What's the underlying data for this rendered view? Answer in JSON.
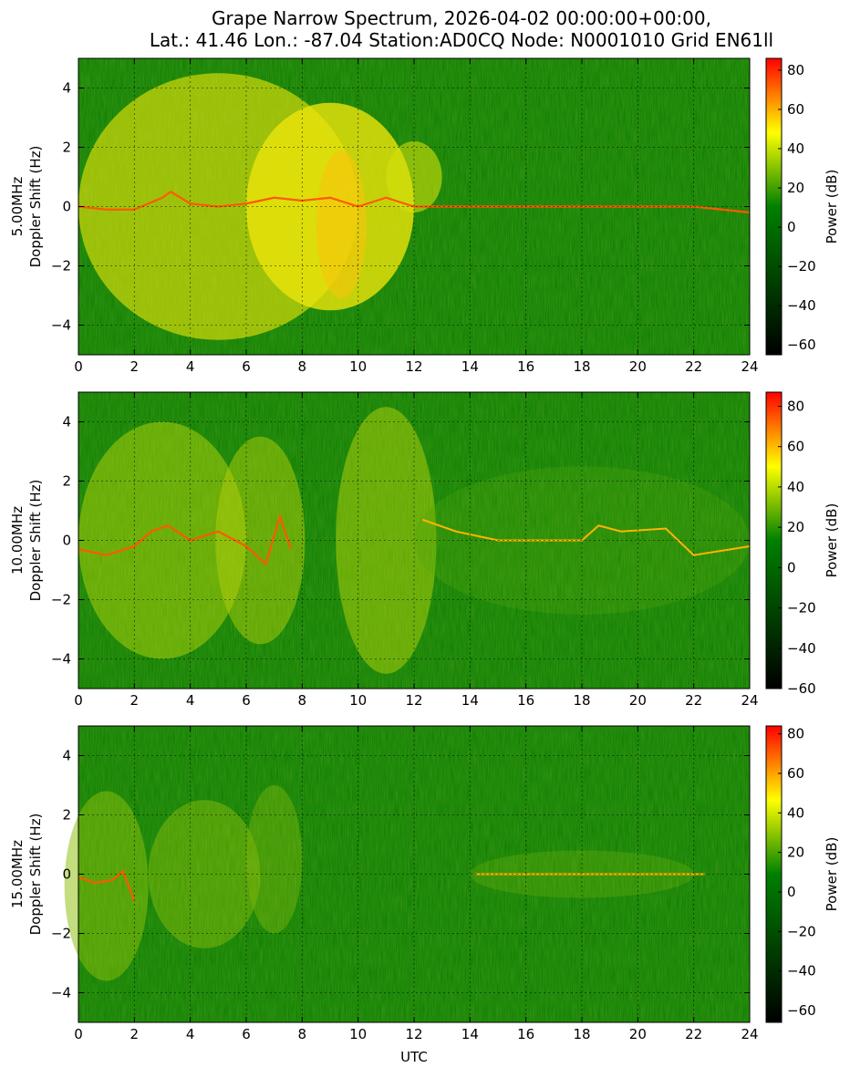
{
  "title_line1": "Grape Narrow Spectrum, 2026-04-02 00:00:00+00:00,",
  "title_line2": "Lat.: 41.46 Lon.: -87.04 Station:AD0CQ Node: N0001010 Grid EN61ll",
  "xlabel": "UTC",
  "colorbar_label": "Power (dB)",
  "colors": {
    "low": "#000000",
    "mid": "#008000",
    "high_mid": "#ffff00",
    "high": "#ff0000"
  },
  "chart_data": [
    {
      "type": "heatmap",
      "band": "5.00MHz",
      "ylabel_line1": "5.00MHz",
      "ylabel_line2": "Doppler Shift (Hz)",
      "xlim": [
        0,
        24
      ],
      "ylim": [
        -5,
        5
      ],
      "xticks": [
        "0",
        "2",
        "4",
        "6",
        "8",
        "10",
        "12",
        "14",
        "16",
        "18",
        "20",
        "22",
        "24"
      ],
      "yticks": [
        "4",
        "2",
        "0",
        "−2",
        "−4"
      ],
      "yvals": [
        4,
        2,
        0,
        -2,
        -4
      ],
      "colorbar_range": [
        -65,
        86
      ],
      "colorbar_ticks": [
        80,
        60,
        40,
        20,
        0,
        -20,
        -40,
        -60
      ],
      "colorbar_tick_labels": [
        "80",
        "60",
        "40",
        "20",
        "0",
        "−20",
        "−40",
        "−60"
      ],
      "grid": true
    },
    {
      "type": "heatmap",
      "band": "10.00MHz",
      "ylabel_line1": "10.00MHz",
      "ylabel_line2": "Doppler Shift (Hz)",
      "xlim": [
        0,
        24
      ],
      "ylim": [
        -5,
        5
      ],
      "xticks": [
        "0",
        "2",
        "4",
        "6",
        "8",
        "10",
        "12",
        "14",
        "16",
        "18",
        "20",
        "22",
        "24"
      ],
      "yticks": [
        "4",
        "2",
        "0",
        "−2",
        "−4"
      ],
      "yvals": [
        4,
        2,
        0,
        -2,
        -4
      ],
      "colorbar_range": [
        -60,
        87
      ],
      "colorbar_ticks": [
        80,
        60,
        40,
        20,
        0,
        -20,
        -40,
        -60
      ],
      "colorbar_tick_labels": [
        "80",
        "60",
        "40",
        "20",
        "0",
        "−20",
        "−40",
        "−60"
      ],
      "grid": true
    },
    {
      "type": "heatmap",
      "band": "15.00MHz",
      "ylabel_line1": "15.00MHz",
      "ylabel_line2": "Doppler Shift (Hz)",
      "xlim": [
        0,
        24
      ],
      "ylim": [
        -5,
        5
      ],
      "xticks": [
        "0",
        "2",
        "4",
        "6",
        "8",
        "10",
        "12",
        "14",
        "16",
        "18",
        "20",
        "22",
        "24"
      ],
      "yticks": [
        "4",
        "2",
        "0",
        "−2",
        "−4"
      ],
      "yvals": [
        4,
        2,
        0,
        -2,
        -4
      ],
      "colorbar_range": [
        -66,
        84
      ],
      "colorbar_ticks": [
        80,
        60,
        40,
        20,
        0,
        -20,
        -40,
        -60
      ],
      "colorbar_tick_labels": [
        "80",
        "60",
        "40",
        "20",
        "0",
        "−20",
        "−40",
        "−60"
      ],
      "grid": true
    }
  ]
}
